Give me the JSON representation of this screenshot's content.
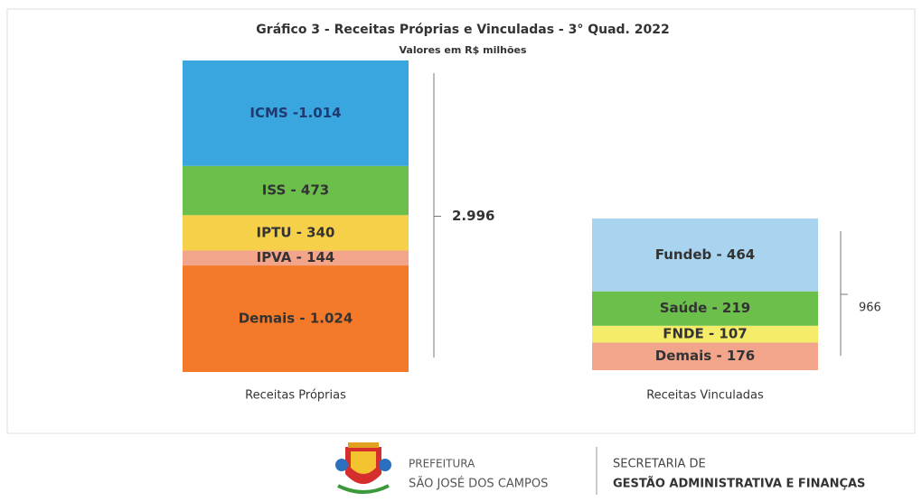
{
  "chart_data": {
    "type": "stacked_bar",
    "title": "Gráfico 3 - Receitas Próprias e Vinculadas - 3° Quad. 2022",
    "subtitle": "Valores em R$ milhões",
    "categories": [
      "Receitas Próprias",
      "Receitas Vinculadas"
    ],
    "stacks": [
      {
        "values": [
          1024,
          144,
          340,
          473,
          1014
        ],
        "value_labels": [
          "Demais - 1.024",
          "IPVA - 144",
          "IPTU - 340",
          "ISS - 473",
          "ICMS -1.014"
        ],
        "colors": [
          "#f47a2a",
          "#f2a58a",
          "#f7d04a",
          "#6cbf4a",
          "#3aa6e0"
        ],
        "total": 2996,
        "total_label": "2.996"
      },
      {
        "values": [
          176,
          107,
          219,
          464
        ],
        "value_labels": [
          "Demais - 176",
          "FNDE - 107",
          "Saúde - 219",
          "Fundeb - 464"
        ],
        "colors": [
          "#f2a58a",
          "#f5ec6a",
          "#6cbf4a",
          "#a8d4ef"
        ],
        "total": 966
      }
    ]
  },
  "footer": {
    "city_line1": "PREFEITURA",
    "city_line2": "SÃO JOSÉ DOS CAMPOS",
    "dept_line1": "SECRETARIA DE",
    "dept_line2": "GESTÃO ADMINISTRATIVA E FINANÇAS"
  }
}
